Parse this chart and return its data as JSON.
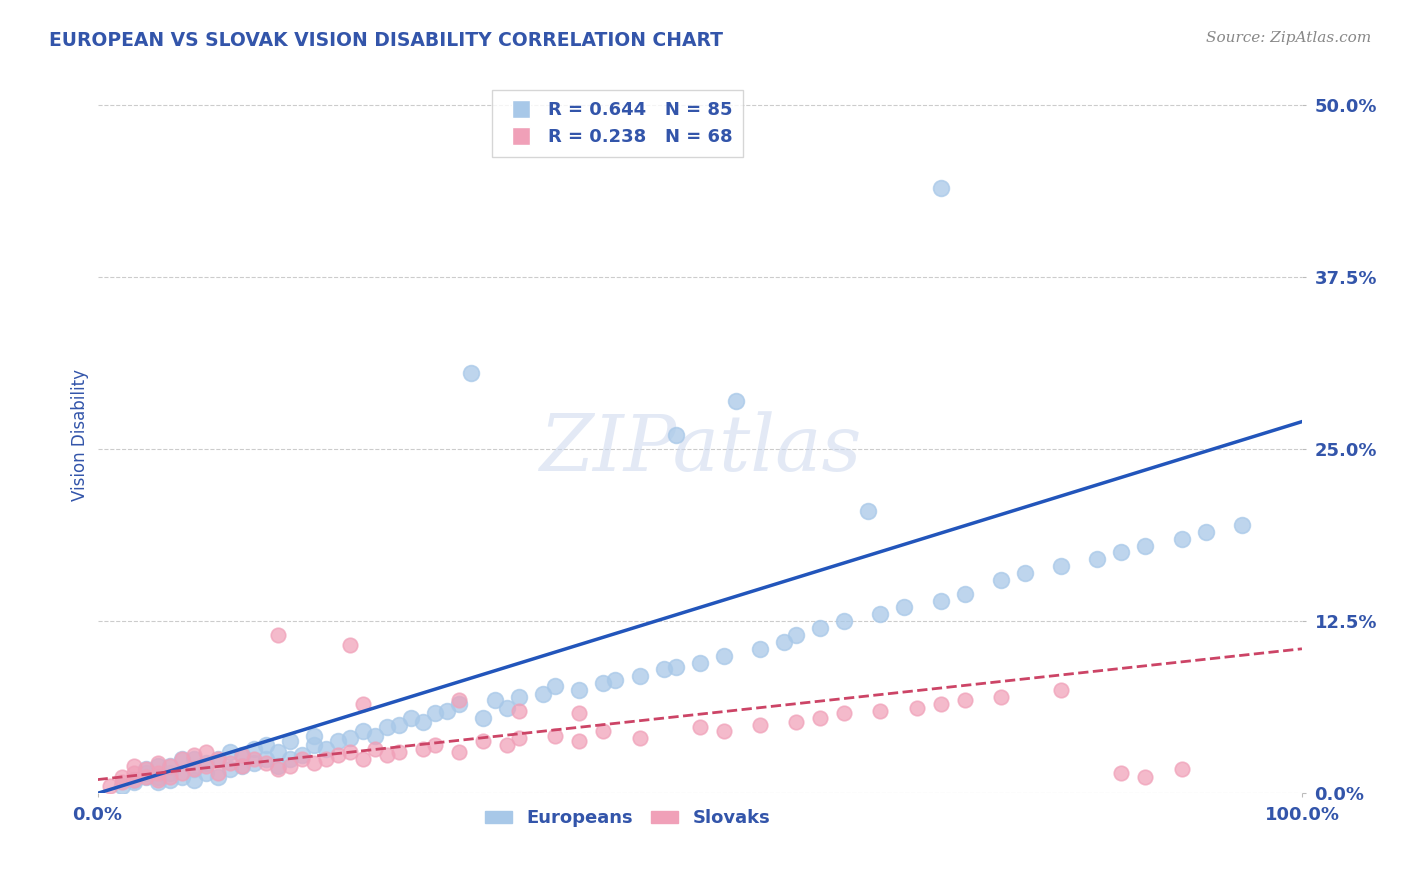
{
  "title": "EUROPEAN VS SLOVAK VISION DISABILITY CORRELATION CHART",
  "source": "Source: ZipAtlas.com",
  "ylabel": "Vision Disability",
  "xlabel": "",
  "xlim": [
    0.0,
    1.0
  ],
  "ylim": [
    0.0,
    0.52
  ],
  "yticks": [
    0.0,
    0.125,
    0.25,
    0.375,
    0.5
  ],
  "ytick_labels": [
    "0.0%",
    "12.5%",
    "25.0%",
    "37.5%",
    "50.0%"
  ],
  "xtick_labels": [
    "0.0%",
    "100.0%"
  ],
  "xticks": [
    0.0,
    1.0
  ],
  "european_R": 0.644,
  "european_N": 85,
  "slovak_R": 0.238,
  "slovak_N": 68,
  "european_color": "#a8c8e8",
  "slovak_color": "#f0a0b8",
  "european_line_color": "#2255bb",
  "slovak_line_color": "#cc4466",
  "background_color": "#ffffff",
  "grid_color": "#cccccc",
  "title_color": "#3355aa",
  "axis_label_color": "#3355aa",
  "tick_label_color": "#3355aa",
  "source_color": "#888888",
  "watermark": "ZIPatlas",
  "legend_eu_label": "Europeans",
  "legend_sk_label": "Slovaks",
  "eu_line_start_y": 0.0,
  "eu_line_end_y": 0.27,
  "sk_line_start_y": 0.01,
  "sk_line_end_y": 0.105,
  "eu_x": [
    0.02,
    0.03,
    0.03,
    0.04,
    0.04,
    0.04,
    0.05,
    0.05,
    0.05,
    0.06,
    0.06,
    0.06,
    0.07,
    0.07,
    0.08,
    0.08,
    0.08,
    0.09,
    0.09,
    0.1,
    0.1,
    0.11,
    0.11,
    0.12,
    0.12,
    0.13,
    0.13,
    0.14,
    0.14,
    0.15,
    0.15,
    0.16,
    0.16,
    0.17,
    0.18,
    0.18,
    0.19,
    0.2,
    0.21,
    0.22,
    0.23,
    0.24,
    0.25,
    0.26,
    0.27,
    0.28,
    0.29,
    0.3,
    0.32,
    0.33,
    0.34,
    0.35,
    0.37,
    0.38,
    0.4,
    0.42,
    0.43,
    0.45,
    0.47,
    0.48,
    0.5,
    0.52,
    0.55,
    0.57,
    0.58,
    0.6,
    0.62,
    0.65,
    0.67,
    0.7,
    0.72,
    0.75,
    0.77,
    0.8,
    0.83,
    0.85,
    0.87,
    0.9,
    0.92,
    0.95,
    0.31,
    0.48,
    0.53,
    0.64,
    0.7
  ],
  "eu_y": [
    0.005,
    0.008,
    0.01,
    0.012,
    0.015,
    0.018,
    0.008,
    0.012,
    0.02,
    0.01,
    0.015,
    0.02,
    0.012,
    0.025,
    0.01,
    0.018,
    0.025,
    0.015,
    0.022,
    0.012,
    0.025,
    0.018,
    0.03,
    0.02,
    0.028,
    0.022,
    0.032,
    0.025,
    0.035,
    0.02,
    0.03,
    0.025,
    0.038,
    0.028,
    0.035,
    0.042,
    0.032,
    0.038,
    0.04,
    0.045,
    0.042,
    0.048,
    0.05,
    0.055,
    0.052,
    0.058,
    0.06,
    0.065,
    0.055,
    0.068,
    0.062,
    0.07,
    0.072,
    0.078,
    0.075,
    0.08,
    0.082,
    0.085,
    0.09,
    0.092,
    0.095,
    0.1,
    0.105,
    0.11,
    0.115,
    0.12,
    0.125,
    0.13,
    0.135,
    0.14,
    0.145,
    0.155,
    0.16,
    0.165,
    0.17,
    0.175,
    0.18,
    0.185,
    0.19,
    0.195,
    0.305,
    0.26,
    0.285,
    0.205,
    0.44
  ],
  "sk_x": [
    0.01,
    0.02,
    0.02,
    0.03,
    0.03,
    0.03,
    0.04,
    0.04,
    0.05,
    0.05,
    0.05,
    0.06,
    0.06,
    0.07,
    0.07,
    0.08,
    0.08,
    0.09,
    0.09,
    0.1,
    0.1,
    0.11,
    0.12,
    0.12,
    0.13,
    0.14,
    0.15,
    0.16,
    0.17,
    0.18,
    0.19,
    0.2,
    0.21,
    0.22,
    0.23,
    0.24,
    0.25,
    0.27,
    0.28,
    0.3,
    0.32,
    0.34,
    0.35,
    0.38,
    0.4,
    0.42,
    0.45,
    0.5,
    0.52,
    0.55,
    0.58,
    0.6,
    0.62,
    0.65,
    0.68,
    0.7,
    0.72,
    0.75,
    0.8,
    0.85,
    0.87,
    0.9,
    0.22,
    0.3,
    0.35,
    0.4,
    0.15,
    0.21
  ],
  "sk_y": [
    0.005,
    0.008,
    0.012,
    0.01,
    0.015,
    0.02,
    0.012,
    0.018,
    0.01,
    0.015,
    0.022,
    0.012,
    0.02,
    0.015,
    0.025,
    0.018,
    0.028,
    0.02,
    0.03,
    0.015,
    0.025,
    0.022,
    0.02,
    0.028,
    0.025,
    0.022,
    0.018,
    0.02,
    0.025,
    0.022,
    0.025,
    0.028,
    0.03,
    0.025,
    0.032,
    0.028,
    0.03,
    0.032,
    0.035,
    0.03,
    0.038,
    0.035,
    0.04,
    0.042,
    0.038,
    0.045,
    0.04,
    0.048,
    0.045,
    0.05,
    0.052,
    0.055,
    0.058,
    0.06,
    0.062,
    0.065,
    0.068,
    0.07,
    0.075,
    0.015,
    0.012,
    0.018,
    0.065,
    0.068,
    0.06,
    0.058,
    0.115,
    0.108
  ]
}
